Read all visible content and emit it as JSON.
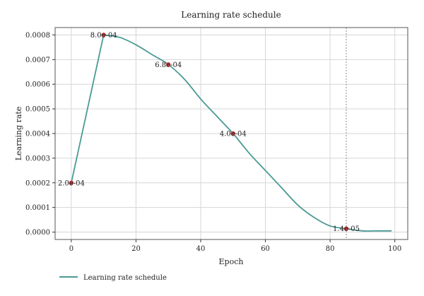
{
  "chart_data": {
    "type": "line",
    "title": "Learning rate schedule",
    "xlabel": "Epoch",
    "ylabel": "Learning rate",
    "xlim": [
      -5,
      104
    ],
    "ylim": [
      -3e-05,
      0.00083
    ],
    "xticks": [
      0,
      20,
      40,
      60,
      80,
      100
    ],
    "xtick_labels": [
      "0",
      "20",
      "40",
      "60",
      "80",
      "100"
    ],
    "yticks": [
      0,
      0.0001,
      0.0002,
      0.0003,
      0.0004,
      0.0005,
      0.0006,
      0.0007,
      0.0008
    ],
    "ytick_labels": [
      "0.0000",
      "0.0001",
      "0.0002",
      "0.0003",
      "0.0004",
      "0.0005",
      "0.0006",
      "0.0007",
      "0.0008"
    ],
    "grid": true,
    "legend_position": "bottom-left",
    "vline_x": 85,
    "series": [
      {
        "name": "Learning rate schedule",
        "color": "#4a9a94",
        "x": [
          0,
          10,
          15,
          20,
          25,
          30,
          35,
          40,
          45,
          50,
          55,
          60,
          65,
          70,
          75,
          80,
          85,
          90,
          95,
          99
        ],
        "y": [
          0.0002,
          0.0008,
          0.00079,
          0.00076,
          0.00072,
          0.00068,
          0.00062,
          0.00054,
          0.00047,
          0.0004,
          0.00032,
          0.00025,
          0.00018,
          0.00011,
          6e-05,
          2.5e-05,
          1.4e-05,
          5e-06,
          5e-06,
          5e-06
        ]
      }
    ],
    "markers": [
      {
        "x": 0,
        "y": 0.0002,
        "label": "2.0e-04"
      },
      {
        "x": 10,
        "y": 0.0008,
        "label": "8.0e-04"
      },
      {
        "x": 30,
        "y": 0.00068,
        "label": "6.8e-04"
      },
      {
        "x": 50,
        "y": 0.0004,
        "label": "4.0e-04"
      },
      {
        "x": 85,
        "y": 1.4e-05,
        "label": "1.4e-05"
      }
    ],
    "marker_color": "#d13b3b"
  }
}
